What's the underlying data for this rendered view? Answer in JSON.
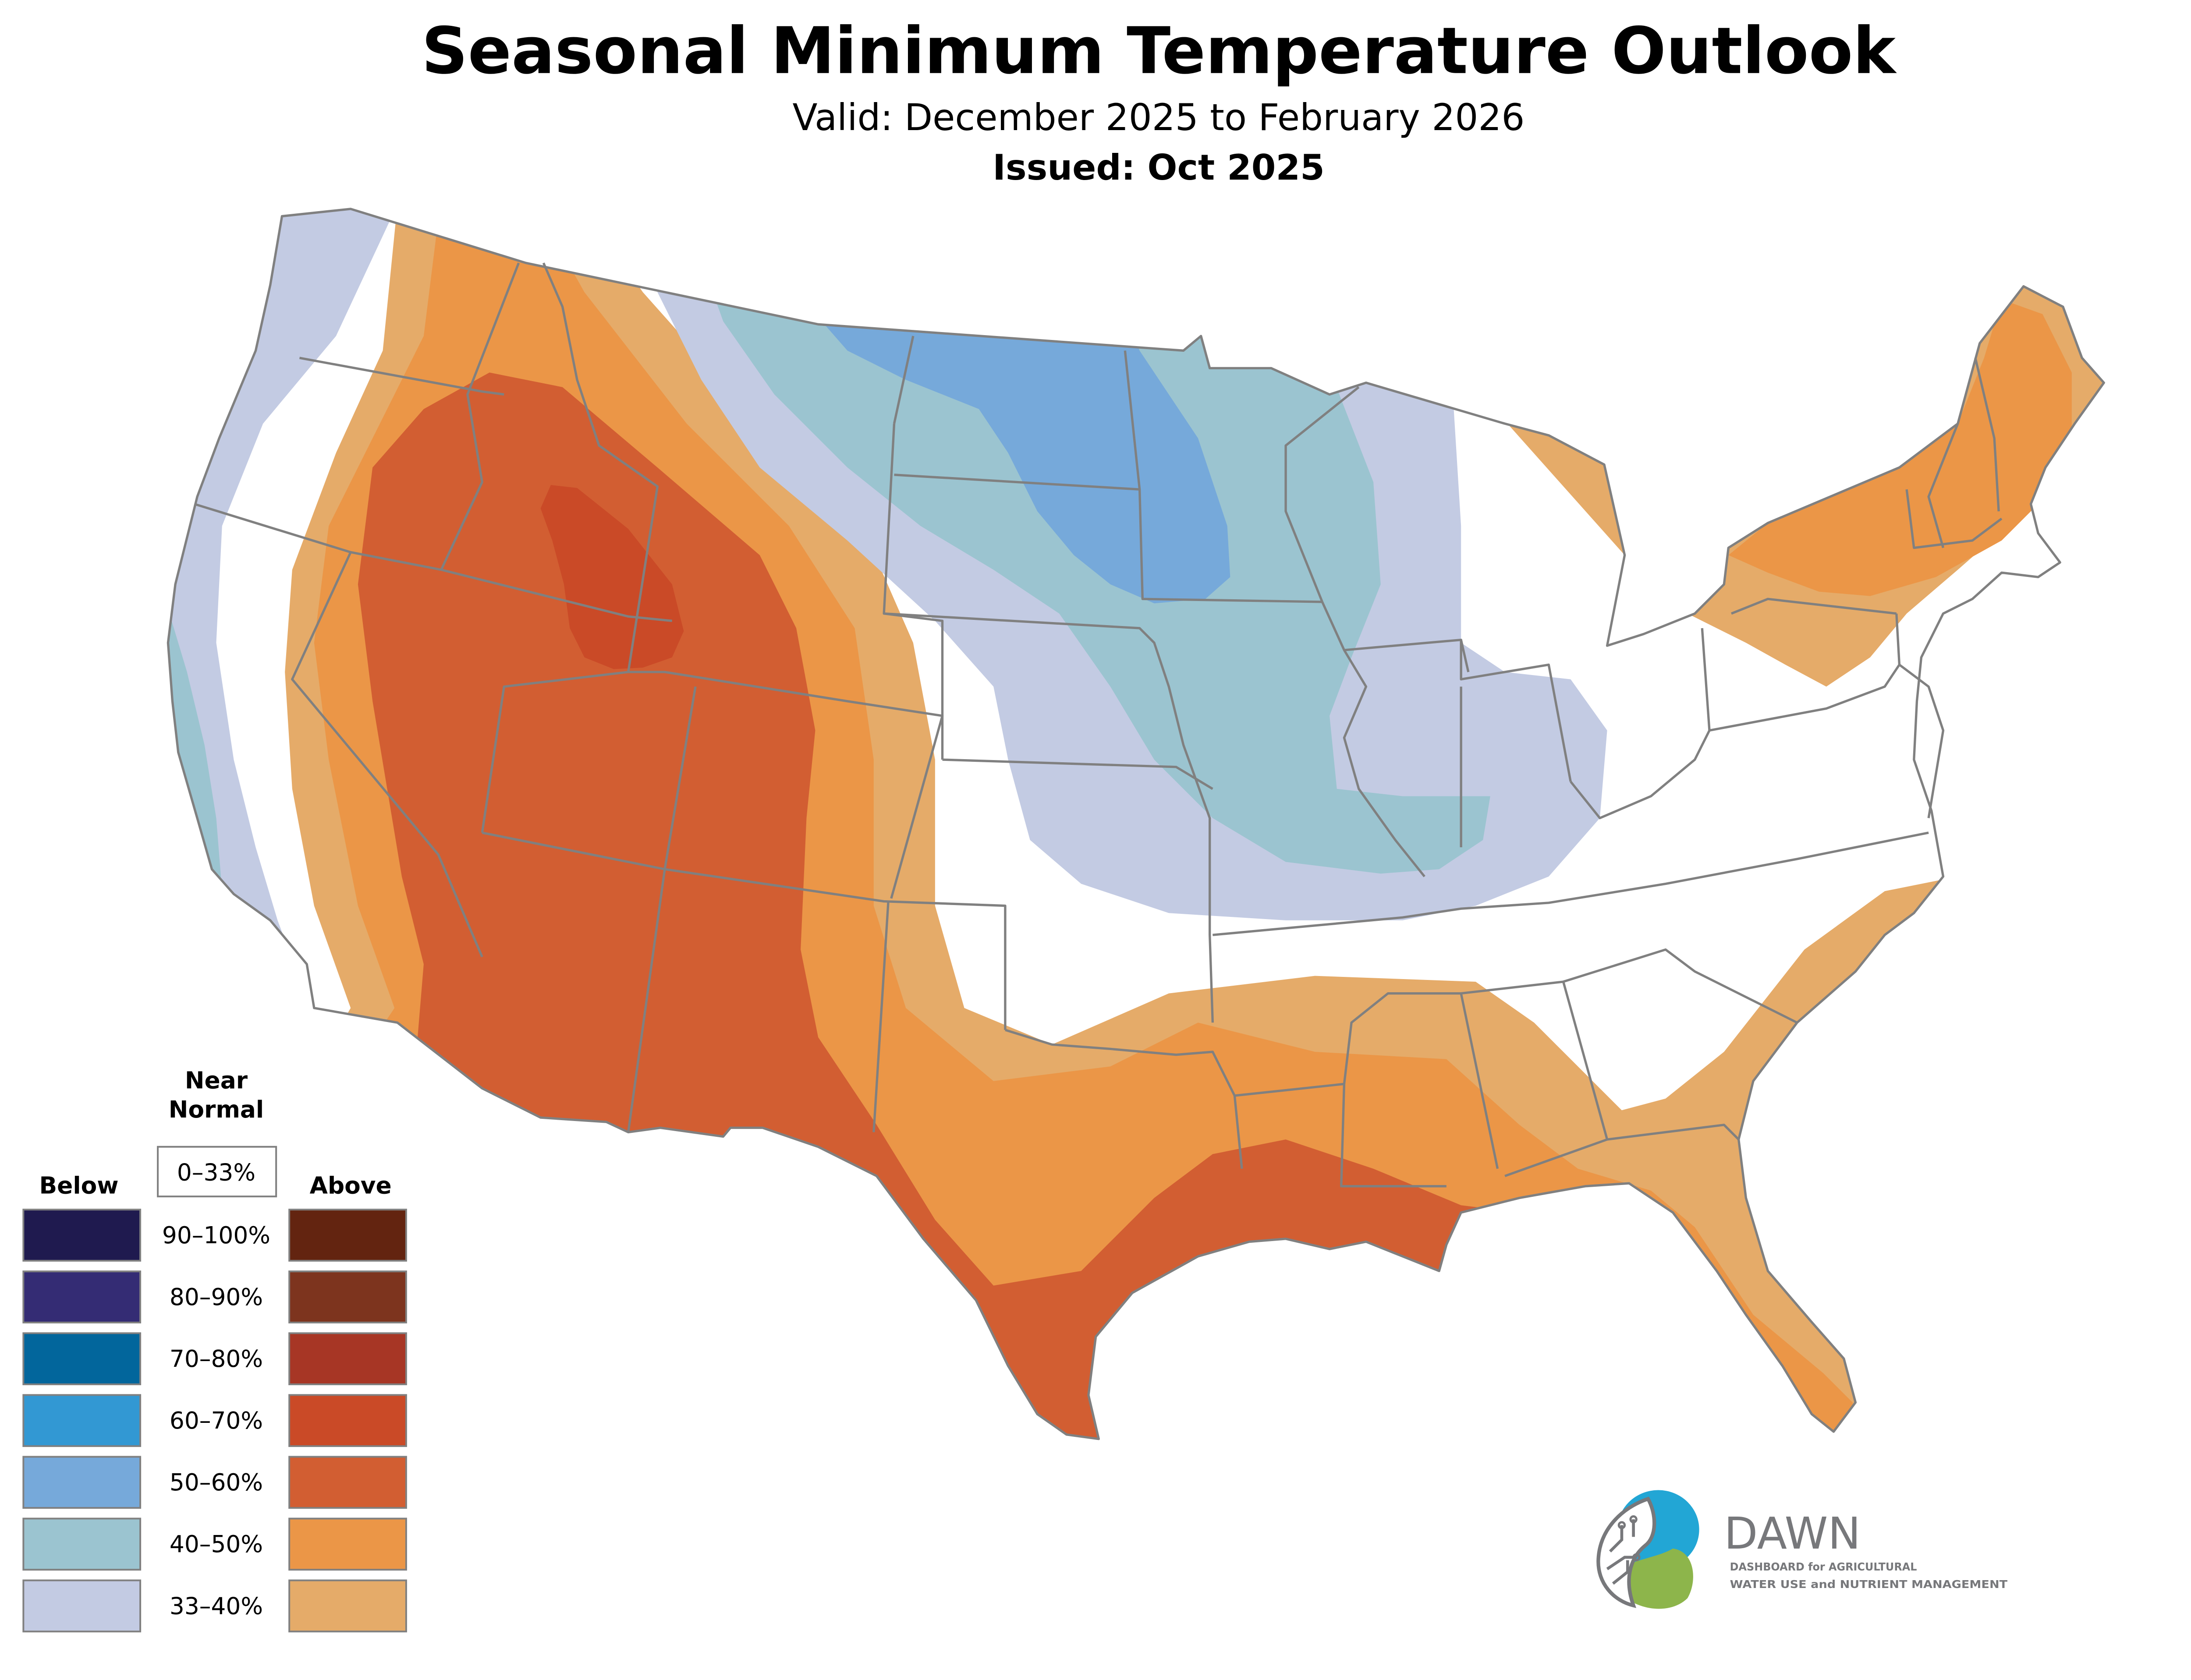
{
  "header": {
    "title": "Seasonal Minimum Temperature Outlook",
    "valid": "Valid: December 2025 to February 2026",
    "issued": "Issued: Oct 2025"
  },
  "legend": {
    "near_normal_heading_line1": "Near",
    "near_normal_heading_line2": "Normal",
    "near_normal_label": "0–33%",
    "below_heading": "Below",
    "above_heading": "Above",
    "rows": [
      {
        "label": "90–100%",
        "below_color": "#1f1a4f",
        "above_color": "#632410"
      },
      {
        "label": "80–90%",
        "below_color": "#342c74",
        "above_color": "#7d341e"
      },
      {
        "label": "70–80%",
        "below_color": "#02669c",
        "above_color": "#a73625"
      },
      {
        "label": "60–70%",
        "below_color": "#3298d3",
        "above_color": "#ca4a27"
      },
      {
        "label": "50–60%",
        "below_color": "#76a9da",
        "above_color": "#d25e32"
      },
      {
        "label": "40–50%",
        "below_color": "#9bc4d0",
        "above_color": "#eb9647"
      },
      {
        "label": "33–40%",
        "below_color": "#c3cbe3",
        "above_color": "#e5ab69"
      }
    ]
  },
  "map": {
    "region": "Contiguous United States",
    "categories_shown": [
      {
        "category": "Below",
        "probability": "33–40%",
        "color": "#c3cbe3"
      },
      {
        "category": "Below",
        "probability": "40–50%",
        "color": "#9bc4d0"
      },
      {
        "category": "Below",
        "probability": "50–60%",
        "color": "#76a9da"
      },
      {
        "category": "Near Normal",
        "probability": "0–33%",
        "color": "#ffffff"
      },
      {
        "category": "Above",
        "probability": "33–40%",
        "color": "#e5ab69"
      },
      {
        "category": "Above",
        "probability": "40–50%",
        "color": "#eb9647"
      },
      {
        "category": "Above",
        "probability": "50–60%",
        "color": "#d25e32"
      },
      {
        "category": "Above",
        "probability": "60–70%",
        "color": "#ca4a27"
      }
    ],
    "border_color": "#808080"
  },
  "logo": {
    "name": "DAWN",
    "line1": "DASHBOARD for AGRICULTURAL",
    "line2": "WATER USE and NUTRIENT MANAGEMENT",
    "blue": "#22a6d5",
    "green": "#8db54b",
    "gray": "#77787b"
  }
}
